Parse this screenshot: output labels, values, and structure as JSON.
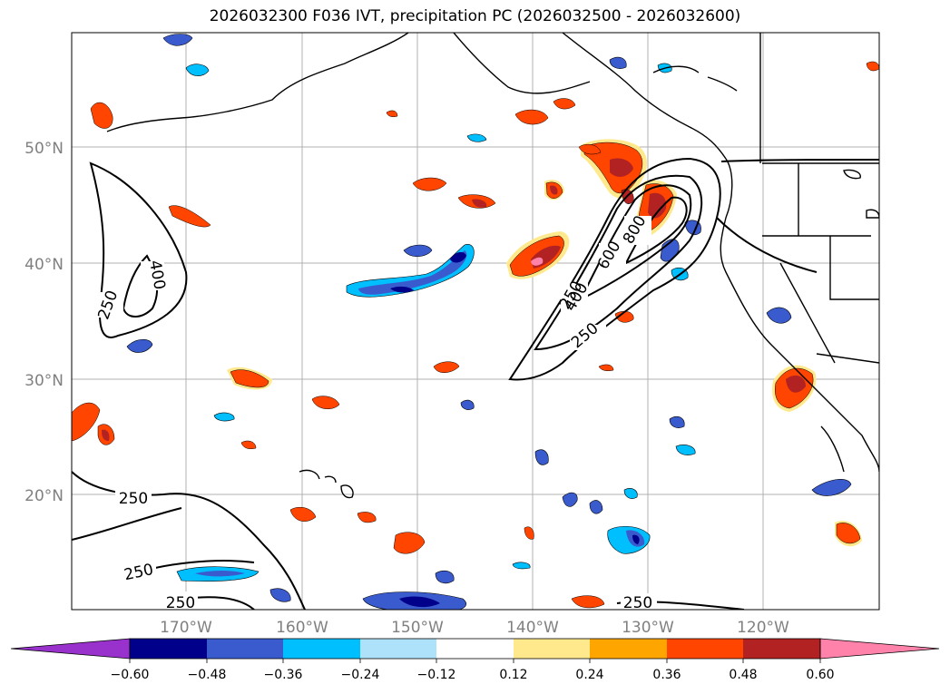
{
  "title": "2026032300 F036 IVT, precipitation PC (2026032500 - 2026032600)",
  "map": {
    "lat_labels": [
      "50°N",
      "40°N",
      "30°N",
      "20°N"
    ],
    "lon_labels": [
      "170°W",
      "160°W",
      "150°W",
      "140°W",
      "130°W",
      "120°W"
    ],
    "contour_labels": [
      "250",
      "400",
      "250",
      "250",
      "250",
      "250",
      "400",
      "600",
      "800",
      "250",
      "250"
    ]
  },
  "colorbar": {
    "ticks": [
      "−0.60",
      "−0.48",
      "−0.36",
      "−0.24",
      "−0.12",
      "0.12",
      "0.24",
      "0.36",
      "0.48",
      "0.60"
    ],
    "colors": [
      "#9932CC",
      "#00008B",
      "#3A5BCD",
      "#00BFFF",
      "#ADE2FA",
      "#FFFFFF",
      "#FFE98C",
      "#FFA500",
      "#FF4500",
      "#B22222",
      "#FF82AB"
    ]
  },
  "colors": {
    "neg_strong": "#00008B",
    "neg_mid": "#3A5BCD",
    "neg_light": "#00BFFF",
    "neg_pale": "#ADE2FA",
    "pos_pale": "#FFE98C",
    "pos_light": "#FFA500",
    "pos_mid": "#FF4500",
    "pos_strong": "#B22222",
    "pos_max": "#FF82AB"
  }
}
